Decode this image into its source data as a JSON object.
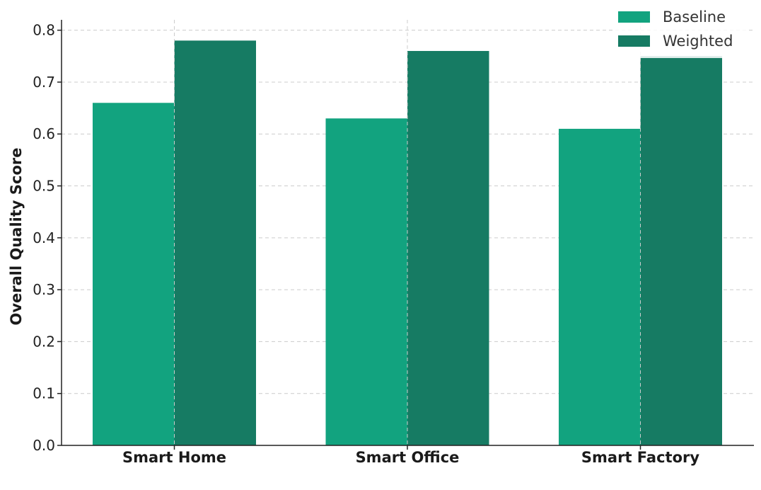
{
  "chart_data": {
    "type": "bar",
    "title": "",
    "xlabel": "",
    "ylabel": "Overall Quality Score",
    "categories": [
      "Smart Home",
      "Smart Office",
      "Smart Factory"
    ],
    "series": [
      {
        "name": "Baseline",
        "values": [
          0.66,
          0.63,
          0.61
        ],
        "color": "#12a37f"
      },
      {
        "name": "Weighted",
        "values": [
          0.78,
          0.76,
          0.75
        ],
        "color": "#167b63"
      }
    ],
    "ylim": [
      0,
      0.82
    ],
    "yticks": [
      "0.0",
      "0.1",
      "0.2",
      "0.3",
      "0.4",
      "0.5",
      "0.6",
      "0.7",
      "0.8"
    ],
    "grid": true,
    "legend_position": "top-right"
  }
}
